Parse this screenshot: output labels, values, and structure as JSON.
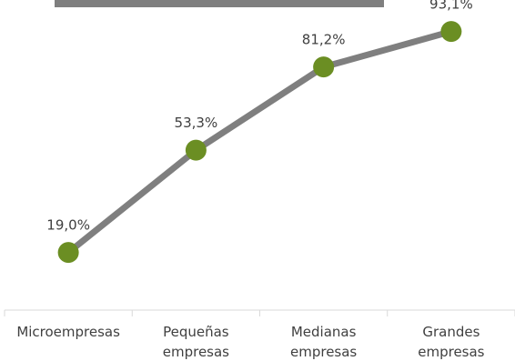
{
  "chart_data": {
    "type": "line",
    "title": "",
    "xlabel": "",
    "ylabel": "",
    "ylim": [
      0,
      100
    ],
    "categories": [
      [
        "Microempresas"
      ],
      [
        "Pequeñas",
        "empresas"
      ],
      [
        "Medianas",
        "empresas"
      ],
      [
        "Grandes",
        "empresas"
      ]
    ],
    "series": [
      {
        "values": [
          19.0,
          53.3,
          81.2,
          93.1
        ],
        "labels": [
          "19,0%",
          "53,3%",
          "81,2%",
          "93,1%"
        ]
      }
    ],
    "grid": false,
    "legend": "none",
    "colors": {
      "line": "#7f7f7f",
      "marker": "#6b8e23",
      "axis": "#d9d9d9",
      "text": "#404040",
      "title_bar": "#7f7f7f"
    }
  }
}
